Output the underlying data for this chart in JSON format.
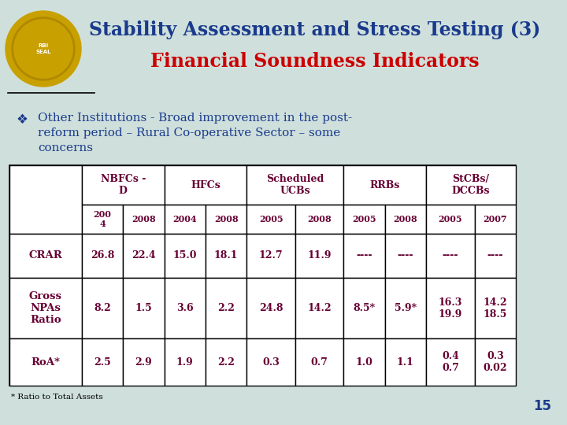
{
  "title_line1": "Stability Assessment and Stress Testing (3)",
  "title_line2": "Financial Soundness Indicators",
  "title_line1_color": "#1a3a8c",
  "title_line2_color": "#cc0000",
  "bg_color": "#cfe0dc",
  "bullet_color": "#1a3a8c",
  "bullet_text_lines": [
    "Other Institutions - Broad improvement in the post-",
    "reform period – Rural Co-operative Sector – some",
    "concerns"
  ],
  "col_group_headers": [
    "NBFCs -\nD",
    "HFCs",
    "Scheduled\nUCBs",
    "RRBs",
    "StCBs/\nDCCBs"
  ],
  "year_headers": [
    "200\n4",
    "2008",
    "2004",
    "2008",
    "2005",
    "2008",
    "2005",
    "2008",
    "2005",
    "2007"
  ],
  "row_labels": [
    "CRAR",
    "Gross\nNPAs\nRatio",
    "RoA*"
  ],
  "table_data": [
    [
      "26.8",
      "22.4",
      "15.0",
      "18.1",
      "12.7",
      "11.9",
      "----",
      "----",
      "----",
      "----"
    ],
    [
      "8.2",
      "1.5",
      "3.6",
      "2.2",
      "24.8",
      "14.2",
      "8.5*",
      "5.9*",
      "16.3\n19.9",
      "14.2\n18.5"
    ],
    [
      "2.5",
      "2.9",
      "1.9",
      "2.2",
      "0.3",
      "0.7",
      "1.0",
      "1.1",
      "0.4\n0.7",
      "0.3\n0.02"
    ]
  ],
  "table_color": "#660033",
  "table_border_color": "#000000",
  "footer_note": "* Ratio to Total Assets",
  "page_number": "15",
  "page_number_color": "#1a3a8c"
}
